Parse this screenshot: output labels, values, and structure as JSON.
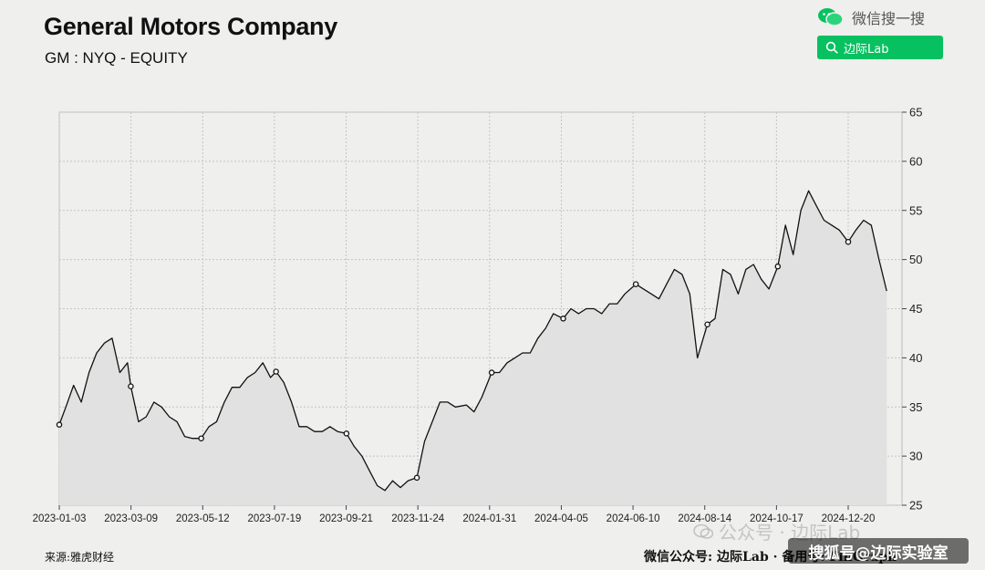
{
  "header": {
    "title": "General Motors Company",
    "subtitle": "GM : NYQ - EQUITY"
  },
  "wechat": {
    "brand_label": "微信搜一搜",
    "search_label": "边际Lab",
    "brand_icon": "wechat-icon",
    "search_icon": "search-icon",
    "accent_color": "#07c160"
  },
  "footer": {
    "source": "来源:雅虎财经",
    "account": "微信公众号: 边际Lab · 备用号: FinGraph"
  },
  "watermarks": {
    "official_account": "公众号 · 边际Lab",
    "sohu": "搜狐号@边际实验室"
  },
  "chart_data": {
    "type": "area",
    "title": "General Motors Company",
    "subtitle": "GM : NYQ - EQUITY",
    "xlabel": "",
    "ylabel": "",
    "ylim": [
      25,
      65
    ],
    "yticks": [
      25,
      30,
      35,
      40,
      45,
      50,
      55,
      60,
      65
    ],
    "y_axis_side": "right",
    "grid": true,
    "line_color": "#111111",
    "fill_color": "#e1e1e1",
    "x_tick_labels": [
      "2023-01-03",
      "2023-03-09",
      "2023-05-12",
      "2023-07-19",
      "2023-09-21",
      "2023-11-24",
      "2024-01-31",
      "2024-04-05",
      "2024-06-10",
      "2024-08-14",
      "2024-10-17",
      "2024-12-20"
    ],
    "series": [
      {
        "x": [
          "2023-01-03",
          "2023-01-09",
          "2023-01-16",
          "2023-01-23",
          "2023-01-30",
          "2023-02-06",
          "2023-02-13",
          "2023-02-20",
          "2023-02-27",
          "2023-03-06",
          "2023-03-09",
          "2023-03-16",
          "2023-03-23",
          "2023-03-30",
          "2023-04-06",
          "2023-04-13",
          "2023-04-20",
          "2023-04-27",
          "2023-05-04",
          "2023-05-12",
          "2023-05-19",
          "2023-05-26",
          "2023-06-02",
          "2023-06-09",
          "2023-06-16",
          "2023-06-23",
          "2023-06-30",
          "2023-07-07",
          "2023-07-14",
          "2023-07-19",
          "2023-07-26",
          "2023-08-02",
          "2023-08-09",
          "2023-08-16",
          "2023-08-23",
          "2023-08-30",
          "2023-09-06",
          "2023-09-13",
          "2023-09-21",
          "2023-09-28",
          "2023-10-05",
          "2023-10-12",
          "2023-10-19",
          "2023-10-26",
          "2023-11-02",
          "2023-11-09",
          "2023-11-16",
          "2023-11-24",
          "2023-12-01",
          "2023-12-08",
          "2023-12-15",
          "2023-12-22",
          "2023-12-29",
          "2024-01-08",
          "2024-01-15",
          "2024-01-22",
          "2024-01-31",
          "2024-02-07",
          "2024-02-14",
          "2024-02-21",
          "2024-02-28",
          "2024-03-06",
          "2024-03-13",
          "2024-03-20",
          "2024-03-27",
          "2024-04-05",
          "2024-04-12",
          "2024-04-19",
          "2024-04-26",
          "2024-05-03",
          "2024-05-10",
          "2024-05-17",
          "2024-05-24",
          "2024-05-31",
          "2024-06-10",
          "2024-06-17",
          "2024-06-24",
          "2024-07-01",
          "2024-07-08",
          "2024-07-15",
          "2024-07-22",
          "2024-07-29",
          "2024-08-05",
          "2024-08-14",
          "2024-08-21",
          "2024-08-28",
          "2024-09-04",
          "2024-09-11",
          "2024-09-18",
          "2024-09-25",
          "2024-10-02",
          "2024-10-09",
          "2024-10-17",
          "2024-10-24",
          "2024-10-31",
          "2024-11-07",
          "2024-11-14",
          "2024-11-21",
          "2024-11-28",
          "2024-12-05",
          "2024-12-12",
          "2024-12-20",
          "2024-12-27",
          "2025-01-03",
          "2025-01-10",
          "2025-01-17",
          "2025-01-24"
        ],
        "values": [
          33.2,
          35.0,
          37.2,
          35.5,
          38.5,
          40.5,
          41.5,
          42.0,
          38.5,
          39.5,
          37.1,
          33.5,
          34.0,
          35.5,
          35.0,
          34.0,
          33.5,
          32.0,
          31.8,
          31.8,
          33.0,
          33.5,
          35.5,
          37.0,
          37.0,
          38.0,
          38.5,
          39.5,
          38.0,
          38.6,
          37.5,
          35.5,
          33.0,
          33.0,
          32.5,
          32.5,
          33.0,
          32.5,
          32.3,
          31.0,
          30.0,
          28.5,
          27.0,
          26.5,
          27.5,
          26.8,
          27.5,
          27.8,
          31.5,
          33.5,
          35.5,
          35.5,
          35.0,
          35.2,
          34.5,
          36.0,
          38.5,
          38.5,
          39.5,
          40.0,
          40.5,
          40.5,
          42.0,
          43.0,
          44.5,
          44.0,
          45.0,
          44.5,
          45.0,
          45.0,
          44.5,
          45.5,
          45.5,
          46.5,
          47.5,
          47.0,
          46.5,
          46.0,
          47.5,
          49.0,
          48.5,
          46.5,
          40.0,
          43.4,
          44.0,
          49.0,
          48.5,
          46.5,
          49.0,
          49.5,
          48.0,
          47.0,
          49.3,
          53.5,
          50.5,
          55.0,
          57.0,
          55.5,
          54.0,
          53.5,
          53.0,
          51.8,
          53.0,
          54.0,
          53.5,
          50.0,
          46.8
        ],
        "markers": [
          {
            "x": "2023-01-03",
            "y": 33.2
          },
          {
            "x": "2023-03-09",
            "y": 37.1
          },
          {
            "x": "2023-05-12",
            "y": 31.8
          },
          {
            "x": "2023-07-19",
            "y": 38.6
          },
          {
            "x": "2023-09-21",
            "y": 32.3
          },
          {
            "x": "2023-11-24",
            "y": 27.8
          },
          {
            "x": "2024-01-31",
            "y": 38.5
          },
          {
            "x": "2024-04-05",
            "y": 44.0
          },
          {
            "x": "2024-06-10",
            "y": 47.5
          },
          {
            "x": "2024-08-14",
            "y": 43.4
          },
          {
            "x": "2024-10-17",
            "y": 49.3
          },
          {
            "x": "2024-12-20",
            "y": 51.8
          }
        ]
      }
    ]
  }
}
